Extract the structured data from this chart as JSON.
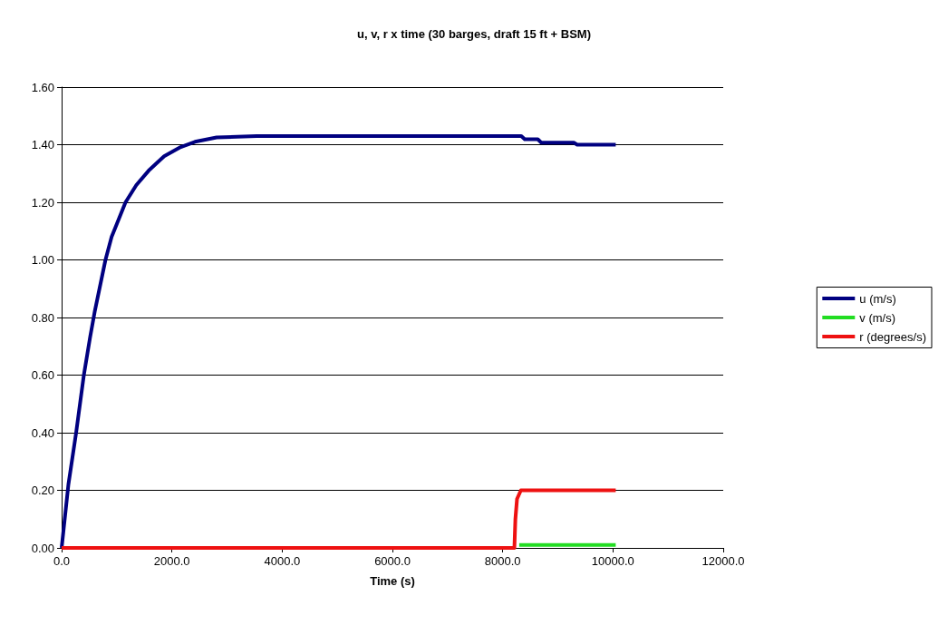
{
  "chart_data": {
    "type": "line",
    "title": "u, v, r x time (30 barges, draft 15 ft + BSM)",
    "xlabel": "Time (s)",
    "xlim": [
      0,
      12000
    ],
    "xticks": [
      {
        "value": 0,
        "label": "0.0"
      },
      {
        "value": 2000,
        "label": "2000.0"
      },
      {
        "value": 4000,
        "label": "4000.0"
      },
      {
        "value": 6000,
        "label": "6000.0"
      },
      {
        "value": 8000,
        "label": "8000.0"
      },
      {
        "value": 10000,
        "label": "10000.0"
      },
      {
        "value": 12000,
        "label": "12000.0"
      }
    ],
    "ylim": [
      0,
      1.6
    ],
    "yticks": [
      {
        "value": 0,
        "label": "0.00"
      },
      {
        "value": 0.2,
        "label": "0.20"
      },
      {
        "value": 0.4,
        "label": "0.40"
      },
      {
        "value": 0.6,
        "label": "0.60"
      },
      {
        "value": 0.8,
        "label": "0.80"
      },
      {
        "value": 1,
        "label": "1.00"
      },
      {
        "value": 1.2,
        "label": "1.20"
      },
      {
        "value": 1.4,
        "label": "1.40"
      },
      {
        "value": 1.6,
        "label": "1.60"
      }
    ],
    "grid": "y",
    "legend": "right",
    "marker": "none",
    "line_style": "solid",
    "series": [
      {
        "name": "u (m/s)",
        "color": "#000080",
        "x": [
          0,
          123,
          263,
          403,
          515,
          600,
          795,
          907,
          1159,
          1355,
          1579,
          1859,
          2139,
          2419,
          2811,
          3539,
          8337,
          8400,
          8636,
          8700,
          9290,
          9350,
          10050
        ],
        "values": [
          0,
          0.22,
          0.4,
          0.6,
          0.73,
          0.82,
          1.0,
          1.08,
          1.2,
          1.26,
          1.31,
          1.36,
          1.39,
          1.41,
          1.425,
          1.43,
          1.43,
          1.419,
          1.419,
          1.407,
          1.407,
          1.4,
          1.4
        ]
      },
      {
        "name": "v (m/s)",
        "color": "#22dd22",
        "x": [
          8300,
          10050
        ],
        "values": [
          0.01,
          0.01
        ]
      },
      {
        "name": "r (degrees/s)",
        "color": "#ee1111",
        "x": [
          0,
          8212,
          8230,
          8260,
          8330,
          10050
        ],
        "values": [
          0,
          0,
          0.1,
          0.17,
          0.2,
          0.2
        ]
      }
    ]
  }
}
